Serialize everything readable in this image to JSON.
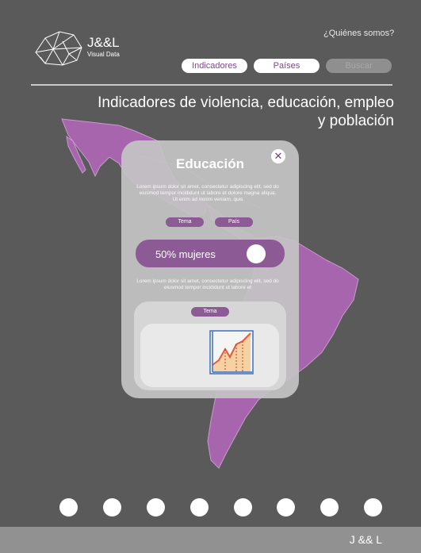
{
  "brand": {
    "name": "J&&L",
    "subtitle": "Visual Data"
  },
  "header": {
    "about_link": "¿Quiénes somos?"
  },
  "nav": {
    "indicadores": "Indicadores",
    "paises": "Países",
    "buscar": "Buscar"
  },
  "headline": "Indicadores de violencia, educación, empleo y población",
  "modal": {
    "title": "Educación",
    "close": "✕",
    "intro": "Lorem ipsum dolor sit amet, consectetur adipiscing elit, sed do eiusmod tempor incididunt ut labore et dolore magna aliqua. Ut enim ad minim veniam, quis",
    "tema_label": "Tema",
    "pais_label": "País",
    "toggle_label": "50% mujeres",
    "body": "Lorem ipsum dolor sit amet, consectetur adipiscing elit, sed do eiusmod tempor incididunt ut labore et",
    "card_tema_label": "Tema"
  },
  "pagination": {
    "count": 8
  },
  "footer": {
    "text": "J && L"
  },
  "colors": {
    "accent": "#8c5a95",
    "background": "#5a5a5a",
    "map": "#a765ad"
  }
}
